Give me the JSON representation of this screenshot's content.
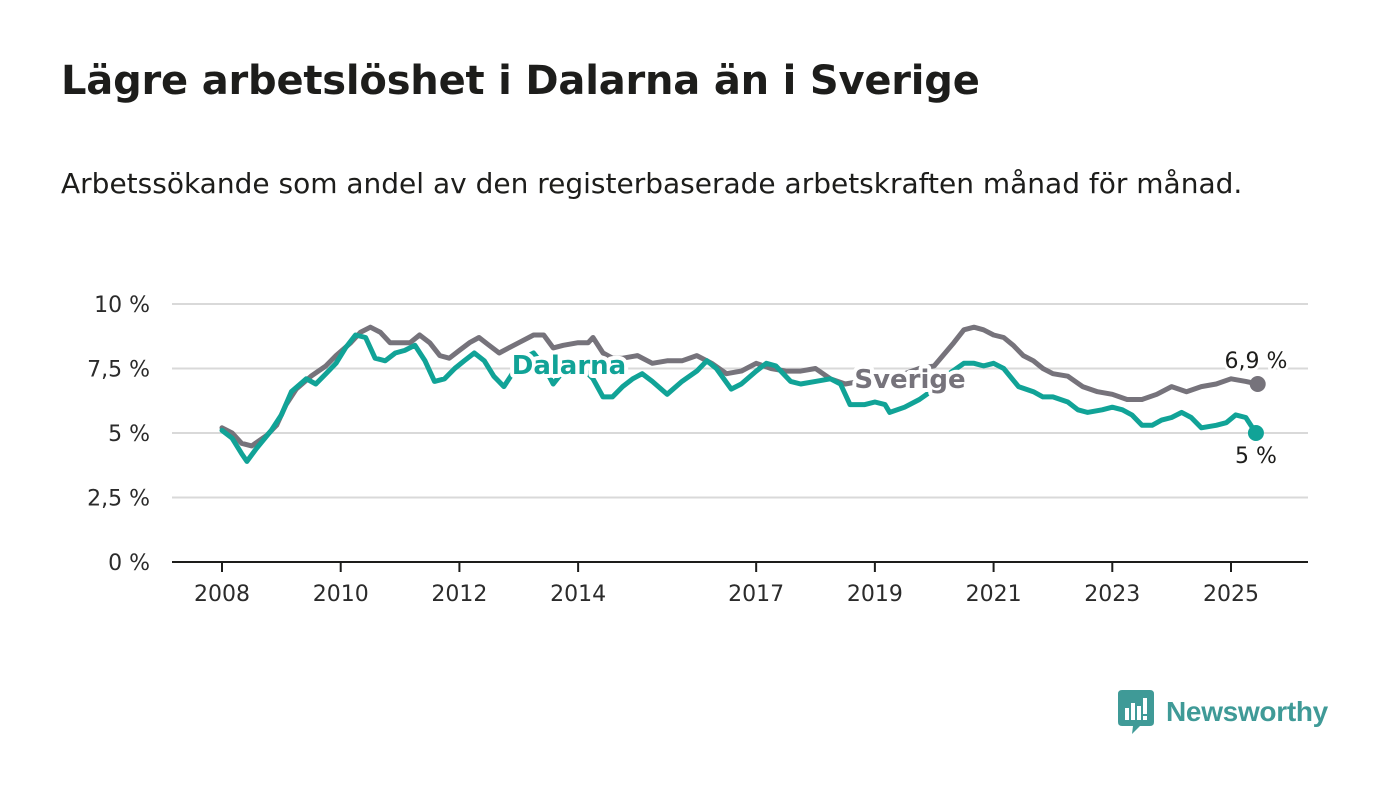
{
  "title": "Lägre arbetslöshet i Dalarna än i Sverige",
  "subtitle": "Arbetssökande som andel av den registerbaserade arbetskraften månad för månad.",
  "brand": "Newsworthy",
  "colors": {
    "sverige": "#76737b",
    "dalarna": "#11a397",
    "grid": "#d9d9d9",
    "axis": "#1d1d1b",
    "brand": "#3f9a97"
  },
  "chart_data": {
    "type": "line",
    "title": "Lägre arbetslöshet i Dalarna än i Sverige",
    "xlabel": "",
    "ylabel": "",
    "y_ticks": [
      "0 %",
      "2,5 %",
      "5 %",
      "7,5 %",
      "10 %"
    ],
    "y_tick_values": [
      0,
      2.5,
      5,
      7.5,
      10
    ],
    "ylim": [
      0,
      10
    ],
    "x_ticks": [
      "2008",
      "2010",
      "2012",
      "2014",
      "2017",
      "2019",
      "2021",
      "2023",
      "2025"
    ],
    "x_tick_values": [
      2008,
      2010,
      2012,
      2014,
      2017,
      2019,
      2021,
      2023,
      2025
    ],
    "xlim": [
      2008,
      2025.5
    ],
    "grid": true,
    "series": [
      {
        "name": "Sverige",
        "end_label": "6,9 %",
        "points": [
          [
            2008.0,
            5.2
          ],
          [
            2008.17,
            5.0
          ],
          [
            2008.33,
            4.6
          ],
          [
            2008.5,
            4.5
          ],
          [
            2008.75,
            4.9
          ],
          [
            2008.92,
            5.3
          ],
          [
            2009.08,
            6.1
          ],
          [
            2009.25,
            6.7
          ],
          [
            2009.5,
            7.2
          ],
          [
            2009.75,
            7.6
          ],
          [
            2009.92,
            8.0
          ],
          [
            2010.17,
            8.5
          ],
          [
            2010.33,
            8.9
          ],
          [
            2010.5,
            9.1
          ],
          [
            2010.67,
            8.9
          ],
          [
            2010.83,
            8.5
          ],
          [
            2011.0,
            8.5
          ],
          [
            2011.17,
            8.5
          ],
          [
            2011.33,
            8.8
          ],
          [
            2011.5,
            8.5
          ],
          [
            2011.67,
            8.0
          ],
          [
            2011.83,
            7.9
          ],
          [
            2012.0,
            8.2
          ],
          [
            2012.17,
            8.5
          ],
          [
            2012.33,
            8.7
          ],
          [
            2012.5,
            8.4
          ],
          [
            2012.67,
            8.1
          ],
          [
            2012.83,
            8.3
          ],
          [
            2013.0,
            8.5
          ],
          [
            2013.25,
            8.8
          ],
          [
            2013.42,
            8.8
          ],
          [
            2013.58,
            8.3
          ],
          [
            2013.75,
            8.4
          ],
          [
            2014.0,
            8.5
          ],
          [
            2014.17,
            8.5
          ],
          [
            2014.25,
            8.7
          ],
          [
            2014.42,
            8.1
          ],
          [
            2014.58,
            7.9
          ],
          [
            2014.75,
            7.9
          ],
          [
            2015.0,
            8.0
          ],
          [
            2015.25,
            7.7
          ],
          [
            2015.5,
            7.8
          ],
          [
            2015.75,
            7.8
          ],
          [
            2016.0,
            8.0
          ],
          [
            2016.25,
            7.7
          ],
          [
            2016.5,
            7.3
          ],
          [
            2016.75,
            7.4
          ],
          [
            2017.0,
            7.7
          ],
          [
            2017.25,
            7.5
          ],
          [
            2017.5,
            7.4
          ],
          [
            2017.75,
            7.4
          ],
          [
            2018.0,
            7.5
          ],
          [
            2018.25,
            7.1
          ],
          [
            2018.5,
            6.9
          ],
          [
            2018.75,
            7.0
          ],
          [
            2019.0,
            7.1
          ],
          [
            2019.25,
            7.2
          ],
          [
            2019.5,
            7.3
          ],
          [
            2019.75,
            7.5
          ],
          [
            2020.0,
            7.6
          ],
          [
            2020.33,
            8.5
          ],
          [
            2020.5,
            9.0
          ],
          [
            2020.67,
            9.1
          ],
          [
            2020.83,
            9.0
          ],
          [
            2021.0,
            8.8
          ],
          [
            2021.17,
            8.7
          ],
          [
            2021.33,
            8.4
          ],
          [
            2021.5,
            8.0
          ],
          [
            2021.67,
            7.8
          ],
          [
            2021.83,
            7.5
          ],
          [
            2022.0,
            7.3
          ],
          [
            2022.25,
            7.2
          ],
          [
            2022.5,
            6.8
          ],
          [
            2022.75,
            6.6
          ],
          [
            2023.0,
            6.5
          ],
          [
            2023.25,
            6.3
          ],
          [
            2023.5,
            6.3
          ],
          [
            2023.75,
            6.5
          ],
          [
            2024.0,
            6.8
          ],
          [
            2024.25,
            6.6
          ],
          [
            2024.5,
            6.8
          ],
          [
            2024.75,
            6.9
          ],
          [
            2025.0,
            7.1
          ],
          [
            2025.25,
            7.0
          ],
          [
            2025.45,
            6.9
          ]
        ]
      },
      {
        "name": "Dalarna",
        "end_label": "5 %",
        "points": [
          [
            2008.0,
            5.1
          ],
          [
            2008.17,
            4.8
          ],
          [
            2008.33,
            4.2
          ],
          [
            2008.42,
            3.9
          ],
          [
            2008.58,
            4.4
          ],
          [
            2008.83,
            5.1
          ],
          [
            2009.0,
            5.7
          ],
          [
            2009.17,
            6.6
          ],
          [
            2009.42,
            7.1
          ],
          [
            2009.58,
            6.9
          ],
          [
            2009.75,
            7.3
          ],
          [
            2009.92,
            7.7
          ],
          [
            2010.08,
            8.3
          ],
          [
            2010.25,
            8.8
          ],
          [
            2010.42,
            8.7
          ],
          [
            2010.58,
            7.9
          ],
          [
            2010.75,
            7.8
          ],
          [
            2010.92,
            8.1
          ],
          [
            2011.08,
            8.2
          ],
          [
            2011.25,
            8.4
          ],
          [
            2011.42,
            7.8
          ],
          [
            2011.58,
            7.0
          ],
          [
            2011.75,
            7.1
          ],
          [
            2011.92,
            7.5
          ],
          [
            2012.08,
            7.8
          ],
          [
            2012.25,
            8.1
          ],
          [
            2012.42,
            7.8
          ],
          [
            2012.58,
            7.2
          ],
          [
            2012.75,
            6.8
          ],
          [
            2012.92,
            7.4
          ],
          [
            2013.08,
            7.9
          ],
          [
            2013.25,
            8.1
          ],
          [
            2013.42,
            7.6
          ],
          [
            2013.58,
            6.9
          ],
          [
            2013.75,
            7.4
          ],
          [
            2013.92,
            7.6
          ],
          [
            2014.08,
            7.5
          ],
          [
            2014.25,
            7.1
          ],
          [
            2014.42,
            6.4
          ],
          [
            2014.58,
            6.4
          ],
          [
            2014.75,
            6.8
          ],
          [
            2014.92,
            7.1
          ],
          [
            2015.08,
            7.3
          ],
          [
            2015.25,
            7.0
          ],
          [
            2015.5,
            6.5
          ],
          [
            2015.75,
            7.0
          ],
          [
            2016.0,
            7.4
          ],
          [
            2016.17,
            7.8
          ],
          [
            2016.33,
            7.5
          ],
          [
            2016.58,
            6.7
          ],
          [
            2016.75,
            6.9
          ],
          [
            2017.0,
            7.4
          ],
          [
            2017.17,
            7.7
          ],
          [
            2017.33,
            7.6
          ],
          [
            2017.58,
            7.0
          ],
          [
            2017.75,
            6.9
          ],
          [
            2018.0,
            7.0
          ],
          [
            2018.25,
            7.1
          ],
          [
            2018.42,
            6.9
          ],
          [
            2018.58,
            6.1
          ],
          [
            2018.83,
            6.1
          ],
          [
            2019.0,
            6.2
          ],
          [
            2019.17,
            6.1
          ],
          [
            2019.25,
            5.8
          ],
          [
            2019.5,
            6.0
          ],
          [
            2019.75,
            6.3
          ],
          [
            2020.0,
            6.7
          ],
          [
            2020.25,
            7.3
          ],
          [
            2020.5,
            7.7
          ],
          [
            2020.67,
            7.7
          ],
          [
            2020.83,
            7.6
          ],
          [
            2021.0,
            7.7
          ],
          [
            2021.17,
            7.5
          ],
          [
            2021.42,
            6.8
          ],
          [
            2021.67,
            6.6
          ],
          [
            2021.83,
            6.4
          ],
          [
            2022.0,
            6.4
          ],
          [
            2022.25,
            6.2
          ],
          [
            2022.42,
            5.9
          ],
          [
            2022.58,
            5.8
          ],
          [
            2022.83,
            5.9
          ],
          [
            2023.0,
            6.0
          ],
          [
            2023.17,
            5.9
          ],
          [
            2023.33,
            5.7
          ],
          [
            2023.5,
            5.3
          ],
          [
            2023.67,
            5.3
          ],
          [
            2023.83,
            5.5
          ],
          [
            2024.0,
            5.6
          ],
          [
            2024.17,
            5.8
          ],
          [
            2024.33,
            5.6
          ],
          [
            2024.5,
            5.2
          ],
          [
            2024.75,
            5.3
          ],
          [
            2024.92,
            5.4
          ],
          [
            2025.08,
            5.7
          ],
          [
            2025.25,
            5.6
          ],
          [
            2025.42,
            5.0
          ]
        ]
      }
    ]
  }
}
